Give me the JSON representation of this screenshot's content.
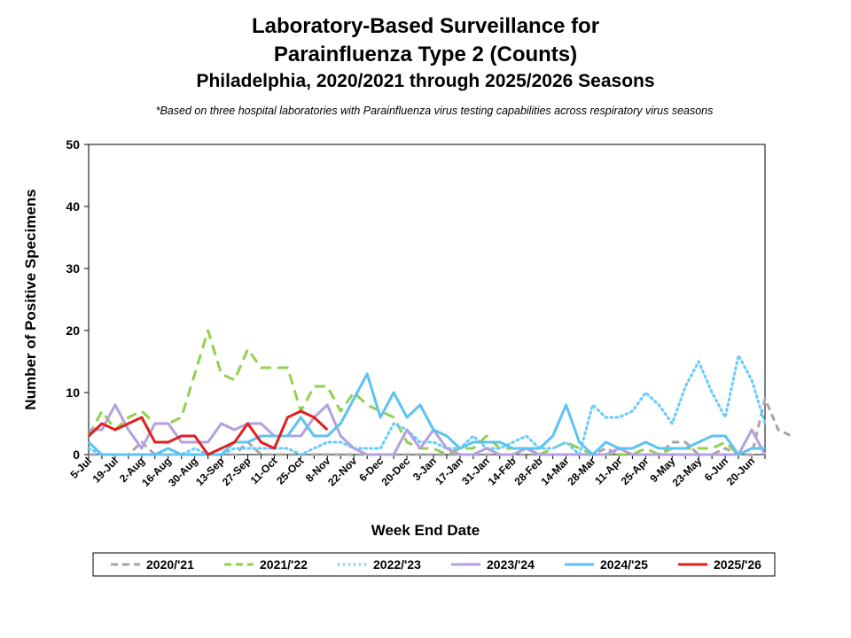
{
  "chart_data": {
    "type": "line",
    "title": "Laboratory-Based Surveillance for Parainfluenza Type 2 (Counts)",
    "title_line1": "Laboratory-Based Surveillance for",
    "title_line2": "Parainfluenza Type 2 (Counts)",
    "subtitle": "Philadelphia, 2020/2021 through 2025/2026 Seasons",
    "note": "*Based on three hospital laboratories with Parainfluenza virus testing capabilities across respiratory virus seasons",
    "xlabel": "Week End Date",
    "ylabel": "Number of Positive Specimens",
    "ylim": [
      0,
      50
    ],
    "yticks": [
      0,
      10,
      20,
      30,
      40,
      50
    ],
    "xtick_labels": [
      "5-Jul",
      "19-Jul",
      "2-Aug",
      "16-Aug",
      "30-Aug",
      "13-Sep",
      "27-Sep",
      "11-Oct",
      "25-Oct",
      "8-Nov",
      "22-Nov",
      "6-Dec",
      "20-Dec",
      "3-Jan",
      "17-Jan",
      "31-Jan",
      "14-Feb",
      "28-Feb",
      "14-Mar",
      "28-Mar",
      "11-Apr",
      "25-Apr",
      "9-May",
      "23-May",
      "6-Jun",
      "20-Jun"
    ],
    "grid": false,
    "legend": "bottom",
    "series": [
      {
        "name": "2020/'21",
        "color": "#A6A6A6",
        "dash": "dash",
        "values": [
          0,
          0,
          0,
          0,
          2,
          0,
          0,
          0,
          0,
          0,
          0,
          0,
          2,
          0,
          0,
          0,
          0,
          0,
          0,
          0,
          0,
          0,
          0,
          0,
          0,
          0,
          0,
          0,
          0,
          0,
          0,
          0,
          0,
          0,
          0,
          0,
          0,
          0,
          0,
          1,
          0,
          0,
          0,
          0,
          2,
          2,
          0,
          0,
          1,
          0,
          0,
          9,
          4,
          3
        ]
      },
      {
        "name": "2021/'22",
        "color": "#92D050",
        "dash": "longdash",
        "values": [
          3,
          7,
          4,
          6,
          7,
          5,
          5,
          6,
          13,
          20,
          13,
          12,
          17,
          14,
          14,
          14,
          7,
          11,
          11,
          7,
          10,
          8,
          7,
          6,
          2,
          1,
          1,
          0,
          1,
          1,
          3,
          1,
          1,
          1,
          0,
          1,
          2,
          1,
          0,
          0,
          0,
          0,
          1,
          0,
          1,
          1,
          1,
          1,
          2,
          0,
          1,
          1
        ]
      },
      {
        "name": "2022/'23",
        "color": "#66CCFF",
        "dash": "dot",
        "values": [
          1,
          0,
          0,
          0,
          0,
          0,
          0,
          0,
          1,
          0,
          0,
          1,
          1,
          1,
          1,
          1,
          0,
          1,
          2,
          2,
          1,
          1,
          1,
          5,
          4,
          2,
          2,
          1,
          1,
          3,
          1,
          1,
          2,
          3,
          1,
          1,
          2,
          0,
          8,
          6,
          6,
          7,
          10,
          8,
          5,
          11,
          15,
          10,
          6,
          16,
          12,
          5
        ]
      },
      {
        "name": "2023/'24",
        "color": "#B4A0E0",
        "dash": "solid",
        "values": [
          4,
          4,
          8,
          4,
          1,
          5,
          5,
          2,
          2,
          2,
          5,
          4,
          5,
          5,
          3,
          3,
          3,
          6,
          8,
          3,
          1,
          0,
          0,
          0,
          4,
          1,
          4,
          1,
          0,
          0,
          1,
          0,
          0,
          1,
          0,
          0,
          0,
          0,
          0,
          0,
          1,
          0,
          0,
          0,
          0,
          0,
          0,
          0,
          0,
          0,
          4,
          0
        ]
      },
      {
        "name": "2024/'25",
        "color": "#5BC4F1",
        "dash": "solid",
        "values": [
          2,
          0,
          0,
          0,
          0,
          0,
          1,
          0,
          0,
          0,
          0,
          2,
          2,
          3,
          3,
          3,
          6,
          3,
          3,
          5,
          9,
          13,
          6,
          10,
          6,
          8,
          4,
          3,
          1,
          2,
          2,
          2,
          1,
          1,
          1,
          3,
          8,
          2,
          0,
          2,
          1,
          1,
          2,
          1,
          1,
          1,
          2,
          3,
          3,
          0,
          1,
          1
        ]
      },
      {
        "name": "2025/'26",
        "color": "#E02020",
        "dash": "solid",
        "values": [
          3,
          5,
          4,
          5,
          6,
          2,
          2,
          3,
          3,
          0,
          1,
          2,
          5,
          2,
          1,
          6,
          7,
          6,
          4
        ]
      }
    ]
  }
}
